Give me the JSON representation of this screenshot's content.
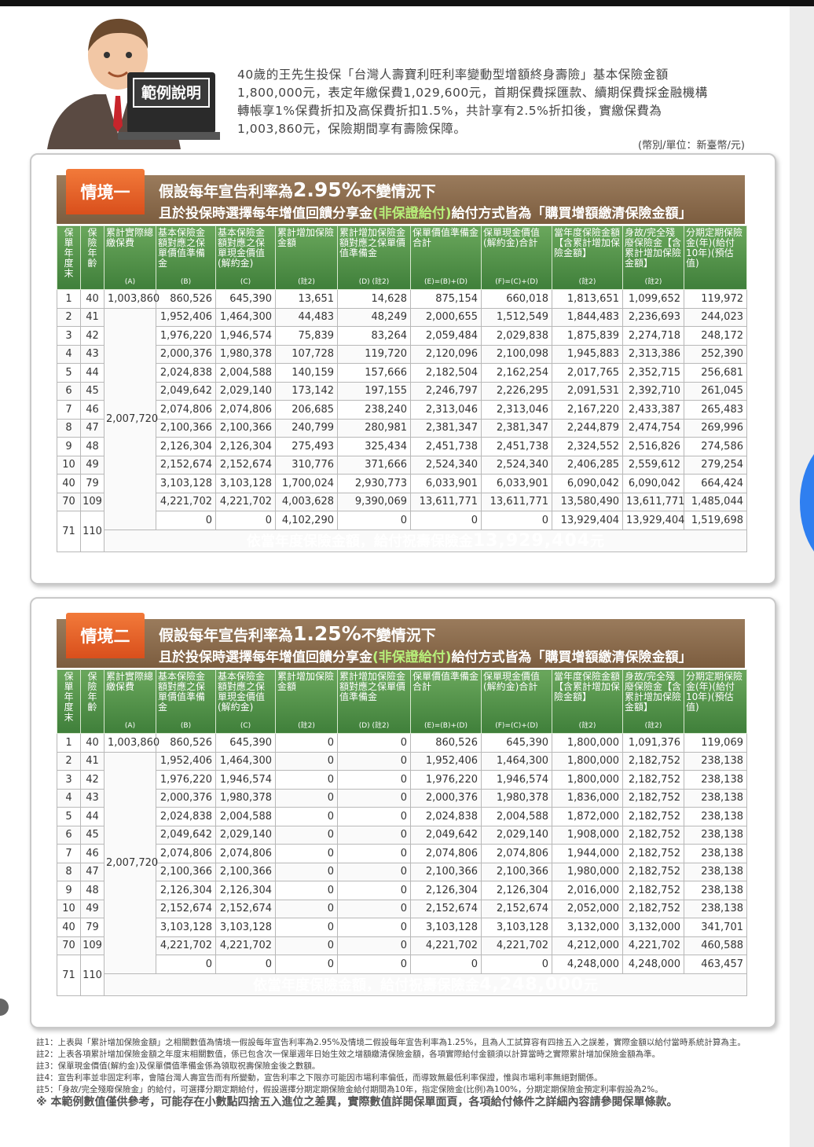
{
  "intro": {
    "label": "範例說明",
    "lines": [
      "40歲的王先生投保「台灣人壽寶利旺利率變動型增額終身壽險」基本保險金額",
      "1,800,000元，表定年繳保費1,029,600元，首期保費採匯款、續期保費採金融機構",
      "轉帳享1%保費折扣及高保費折扣1.5%，共計享有2.5%折扣後，實繳保費為",
      "1,003,860元，保險期間享有壽險保障。"
    ],
    "unit": "(幣別/單位：新臺幣/元)"
  },
  "scenarios": [
    {
      "badge": "情境一",
      "title": [
        "假設每年宣告利率為",
        "2.95%",
        "不變情況下"
      ],
      "subtitle": [
        "且於投保時選擇每年增值回饋分享金",
        "(非保證給付)",
        "給付方式皆為「購買增額繳清保險金額」"
      ],
      "headers": [
        {
          "label": "保單年度末"
        },
        {
          "label": "保險年齡"
        },
        {
          "label": "累計實際總繳保費",
          "sub": "(A)"
        },
        {
          "label": "基本保險金額對應之保單價值準備金",
          "sub": "(B)"
        },
        {
          "label": "基本保險金額對應之保單現金價值(解約金)",
          "sub": "(C)"
        },
        {
          "label": "累計增加保險金額",
          "sub": "(註2)"
        },
        {
          "label": "累計增加保險金額對應之保單價值準備金",
          "sub": "(D) (註2)"
        },
        {
          "label": "保單價值準備金合計",
          "sub": "(E)=(B)+(D)"
        },
        {
          "label": "保單現金價值(解約金)合計",
          "sub": "(F)=(C)+(D)"
        },
        {
          "label": "當年度保險金額【含累計增加保險金額】",
          "sub": "(註2)"
        },
        {
          "label": "身故/完全殘廢保險金【含累計增加保險金額】",
          "sub": "(註2)"
        },
        {
          "label": "分期定期保險金(年)(給付10年)(預估值)"
        }
      ],
      "rows": [
        [
          "1",
          "40",
          "1,003,860",
          "860,526",
          "645,390",
          "13,651",
          "14,628",
          "875,154",
          "660,018",
          "1,813,651",
          "1,099,652",
          "119,972"
        ],
        [
          "2",
          "41",
          null,
          "1,952,406",
          "1,464,300",
          "44,483",
          "48,249",
          "2,000,655",
          "1,512,549",
          "1,844,483",
          "2,236,693",
          "244,023"
        ],
        [
          "3",
          "42",
          null,
          "1,976,220",
          "1,946,574",
          "75,839",
          "83,264",
          "2,059,484",
          "2,029,838",
          "1,875,839",
          "2,274,718",
          "248,172"
        ],
        [
          "4",
          "43",
          null,
          "2,000,376",
          "1,980,378",
          "107,728",
          "119,720",
          "2,120,096",
          "2,100,098",
          "1,945,883",
          "2,313,386",
          "252,390"
        ],
        [
          "5",
          "44",
          null,
          "2,024,838",
          "2,004,588",
          "140,159",
          "157,666",
          "2,182,504",
          "2,162,254",
          "2,017,765",
          "2,352,715",
          "256,681"
        ],
        [
          "6",
          "45",
          null,
          "2,049,642",
          "2,029,140",
          "173,142",
          "197,155",
          "2,246,797",
          "2,226,295",
          "2,091,531",
          "2,392,710",
          "261,045"
        ],
        [
          "7",
          "46",
          "2,007,720",
          "2,074,806",
          "2,074,806",
          "206,685",
          "238,240",
          "2,313,046",
          "2,313,046",
          "2,167,220",
          "2,433,387",
          "265,483"
        ],
        [
          "8",
          "47",
          null,
          "2,100,366",
          "2,100,366",
          "240,799",
          "280,981",
          "2,381,347",
          "2,381,347",
          "2,244,879",
          "2,474,754",
          "269,996"
        ],
        [
          "9",
          "48",
          null,
          "2,126,304",
          "2,126,304",
          "275,493",
          "325,434",
          "2,451,738",
          "2,451,738",
          "2,324,552",
          "2,516,826",
          "274,586"
        ],
        [
          "10",
          "49",
          null,
          "2,152,674",
          "2,152,674",
          "310,776",
          "371,666",
          "2,524,340",
          "2,524,340",
          "2,406,285",
          "2,559,612",
          "279,254"
        ],
        [
          "40",
          "79",
          null,
          "3,103,128",
          "3,103,128",
          "1,700,024",
          "2,930,773",
          "6,033,901",
          "6,033,901",
          "6,090,042",
          "6,090,042",
          "664,424"
        ],
        [
          "70",
          "109",
          null,
          "4,221,702",
          "4,221,702",
          "4,003,628",
          "9,390,069",
          "13,611,771",
          "13,611,771",
          "13,580,490",
          "13,611,771",
          "1,485,044"
        ],
        [
          "71",
          "110",
          null,
          "0",
          "0",
          "4,102,290",
          "0",
          "0",
          "0",
          "13,929,404",
          "13,929,404",
          "1,519,698"
        ]
      ],
      "footer": [
        "依當年度保險金額，給付祝壽保險金",
        "13,929,404",
        "元"
      ]
    },
    {
      "badge": "情境二",
      "title": [
        "假設每年宣告利率為",
        "1.25%",
        "不變情況下"
      ],
      "subtitle": [
        "且於投保時選擇每年增值回饋分享金",
        "(非保證給付)",
        "給付方式皆為「購買增額繳清保險金額」"
      ],
      "headers": [
        {
          "label": "保單年度末"
        },
        {
          "label": "保險年齡"
        },
        {
          "label": "累計實際總繳保費",
          "sub": "(A)"
        },
        {
          "label": "基本保險金額對應之保單價值準備金",
          "sub": "(B)"
        },
        {
          "label": "基本保險金額對應之保單現金價值(解約金)",
          "sub": "(C)"
        },
        {
          "label": "累計增加保險金額",
          "sub": "(註2)"
        },
        {
          "label": "累計增加保險金額對應之保單價值準備金",
          "sub": "(D) (註2)"
        },
        {
          "label": "保單價值準備金合計",
          "sub": "(E)=(B)+(D)"
        },
        {
          "label": "保單現金價值(解約金)合計",
          "sub": "(F)=(C)+(D)"
        },
        {
          "label": "當年度保險金額【含累計增加保險金額】",
          "sub": "(註2)"
        },
        {
          "label": "身故/完全殘廢保險金【含累計增加保險金額】",
          "sub": "(註2)"
        },
        {
          "label": "分期定期保險金(年)(給付10年)(預估值)"
        }
      ],
      "rows": [
        [
          "1",
          "40",
          "1,003,860",
          "860,526",
          "645,390",
          "0",
          "0",
          "860,526",
          "645,390",
          "1,800,000",
          "1,091,376",
          "119,069"
        ],
        [
          "2",
          "41",
          null,
          "1,952,406",
          "1,464,300",
          "0",
          "0",
          "1,952,406",
          "1,464,300",
          "1,800,000",
          "2,182,752",
          "238,138"
        ],
        [
          "3",
          "42",
          null,
          "1,976,220",
          "1,946,574",
          "0",
          "0",
          "1,976,220",
          "1,946,574",
          "1,800,000",
          "2,182,752",
          "238,138"
        ],
        [
          "4",
          "43",
          null,
          "2,000,376",
          "1,980,378",
          "0",
          "0",
          "2,000,376",
          "1,980,378",
          "1,836,000",
          "2,182,752",
          "238,138"
        ],
        [
          "5",
          "44",
          null,
          "2,024,838",
          "2,004,588",
          "0",
          "0",
          "2,024,838",
          "2,004,588",
          "1,872,000",
          "2,182,752",
          "238,138"
        ],
        [
          "6",
          "45",
          null,
          "2,049,642",
          "2,029,140",
          "0",
          "0",
          "2,049,642",
          "2,029,140",
          "1,908,000",
          "2,182,752",
          "238,138"
        ],
        [
          "7",
          "46",
          "2,007,720",
          "2,074,806",
          "2,074,806",
          "0",
          "0",
          "2,074,806",
          "2,074,806",
          "1,944,000",
          "2,182,752",
          "238,138"
        ],
        [
          "8",
          "47",
          null,
          "2,100,366",
          "2,100,366",
          "0",
          "0",
          "2,100,366",
          "2,100,366",
          "1,980,000",
          "2,182,752",
          "238,138"
        ],
        [
          "9",
          "48",
          null,
          "2,126,304",
          "2,126,304",
          "0",
          "0",
          "2,126,304",
          "2,126,304",
          "2,016,000",
          "2,182,752",
          "238,138"
        ],
        [
          "10",
          "49",
          null,
          "2,152,674",
          "2,152,674",
          "0",
          "0",
          "2,152,674",
          "2,152,674",
          "2,052,000",
          "2,182,752",
          "238,138"
        ],
        [
          "40",
          "79",
          null,
          "3,103,128",
          "3,103,128",
          "0",
          "0",
          "3,103,128",
          "3,103,128",
          "3,132,000",
          "3,132,000",
          "341,701"
        ],
        [
          "70",
          "109",
          null,
          "4,221,702",
          "4,221,702",
          "0",
          "0",
          "4,221,702",
          "4,221,702",
          "4,212,000",
          "4,221,702",
          "460,588"
        ],
        [
          "71",
          "110",
          null,
          "0",
          "0",
          "0",
          "0",
          "0",
          "0",
          "4,248,000",
          "4,248,000",
          "463,457"
        ]
      ],
      "footer": [
        "依當年度保險金額，給付祝壽保險金",
        "4,248,000",
        "元"
      ]
    }
  ],
  "notes": [
    "註1：上表與「累計增加保險金額」之相關數值為情境一假設每年宣告利率為2.95%及情境二假設每年宣告利率為1.25%，且為人工試算容有四捨五入之誤差，實際金額以給付當時系統計算為主。",
    "註2：上表各項累計增加保險金額之年度末相關數值，係已包含次一保單週年日始生效之增額繳清保險金額，各項實際給付金額須以計算當時之實際累計增加保險金額為準。",
    "註3：保單現金價值(解約金)及保單價值準備金係為領取祝壽保險金後之數額。",
    "註4：宣告利率並非固定利率，會隨台灣人壽宣告而有所變動，宣告利率之下限亦可能因市場利率偏低，而導致無最低利率保證，惟與市場利率無絕對關係。",
    "註5：「身故/完全殘廢保險金」的給付，可選擇分期定期給付，假設選擇分期定期保險金給付期間為10年，指定保險金(比例)為100%，分期定期保險金預定利率假設為2%。"
  ],
  "disclaimer": "※ 本範例數值僅供參考，可能存在小數點四捨五入進位之差異，實際數值詳閱保單面頁，各項給付條件之詳細內容請參閱保單條款。"
}
